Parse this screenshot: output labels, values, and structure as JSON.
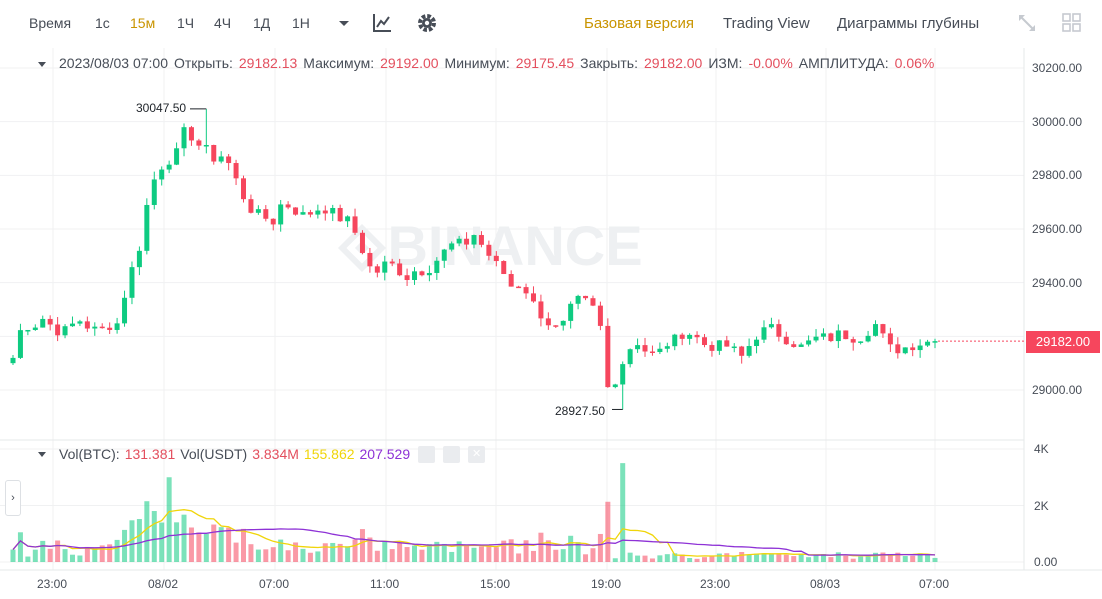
{
  "toolbar": {
    "time_label": "Время",
    "intervals": [
      "1с",
      "15м",
      "1Ч",
      "4Ч",
      "1Д",
      "1Н"
    ],
    "active_interval": "15м",
    "views": [
      "Базовая версия",
      "Trading View",
      "Диаграммы глубины"
    ],
    "active_view": "Базовая версия"
  },
  "info": {
    "datetime": "2023/08/03 07:00",
    "open_label": "Открыть:",
    "open": "29182.13",
    "high_label": "Максимум:",
    "high": "29192.00",
    "low_label": "Минимум:",
    "low": "29175.45",
    "close_label": "Закрыть:",
    "close": "29182.00",
    "change_label": "ИЗМ:",
    "change": "-0.00%",
    "amp_label": "АМПЛИТУДА:",
    "amp": "0.06%"
  },
  "volume": {
    "btc_label": "Vol(BTC):",
    "btc": "131.381",
    "usdt_label": "Vol(USDT)",
    "usdt": "3.834M",
    "ma1": "155.862",
    "ma2": "207.529"
  },
  "price_axis": [
    "30200.00",
    "30000.00",
    "29800.00",
    "29600.00",
    "29400.00",
    "29200.00",
    "29000.00"
  ],
  "volume_axis": [
    "4K",
    "2K",
    "0.00"
  ],
  "time_axis": [
    "23:00",
    "08/02",
    "07:00",
    "11:00",
    "15:00",
    "19:00",
    "23:00",
    "08/03",
    "07:00"
  ],
  "last_price": "29182.00",
  "high_marker": "30047.50",
  "low_marker": "28927.50",
  "watermark": "BINANCE",
  "colors": {
    "up": "#0ecb81",
    "down": "#f6465d",
    "accent": "#c99400",
    "ma_yellow": "#f0d50a",
    "ma_purple": "#8e32d6"
  },
  "chart_data": {
    "type": "candlestick",
    "interval": "15m",
    "ylim": [
      28850,
      30250
    ],
    "volume_ylim": [
      0,
      4000
    ],
    "close_path": [
      29120,
      29250,
      29230,
      29270,
      29240,
      29210,
      29240,
      29260,
      29230,
      29220,
      29240,
      29250,
      29420,
      29500,
      29700,
      29820,
      29850,
      29880,
      29980,
      29920,
      29900,
      29860,
      29880,
      29800,
      29720,
      29660,
      29650,
      29620,
      29700,
      29680,
      29650,
      29660,
      29680,
      29670,
      29640,
      29630,
      29560,
      29460,
      29440,
      29480,
      29450,
      29420,
      29450,
      29440,
      29480,
      29520,
      29550,
      29540,
      29580,
      29530,
      29480,
      29440,
      29380,
      29400,
      29330,
      29280,
      29240,
      29220,
      29300,
      29340,
      29320,
      29280,
      28990,
      29060,
      29150,
      29180,
      29140,
      29130,
      29170,
      29190,
      29220,
      29200,
      29170,
      29160,
      29170,
      29150,
      29120,
      29190,
      29220,
      29230,
      29200,
      29180,
      29160,
      29180,
      29200,
      29190,
      29210,
      29200,
      29190,
      29220,
      29250,
      29160,
      29150,
      29160,
      29170,
      29180,
      29182
    ],
    "volume_btc_last": 131.381
  }
}
